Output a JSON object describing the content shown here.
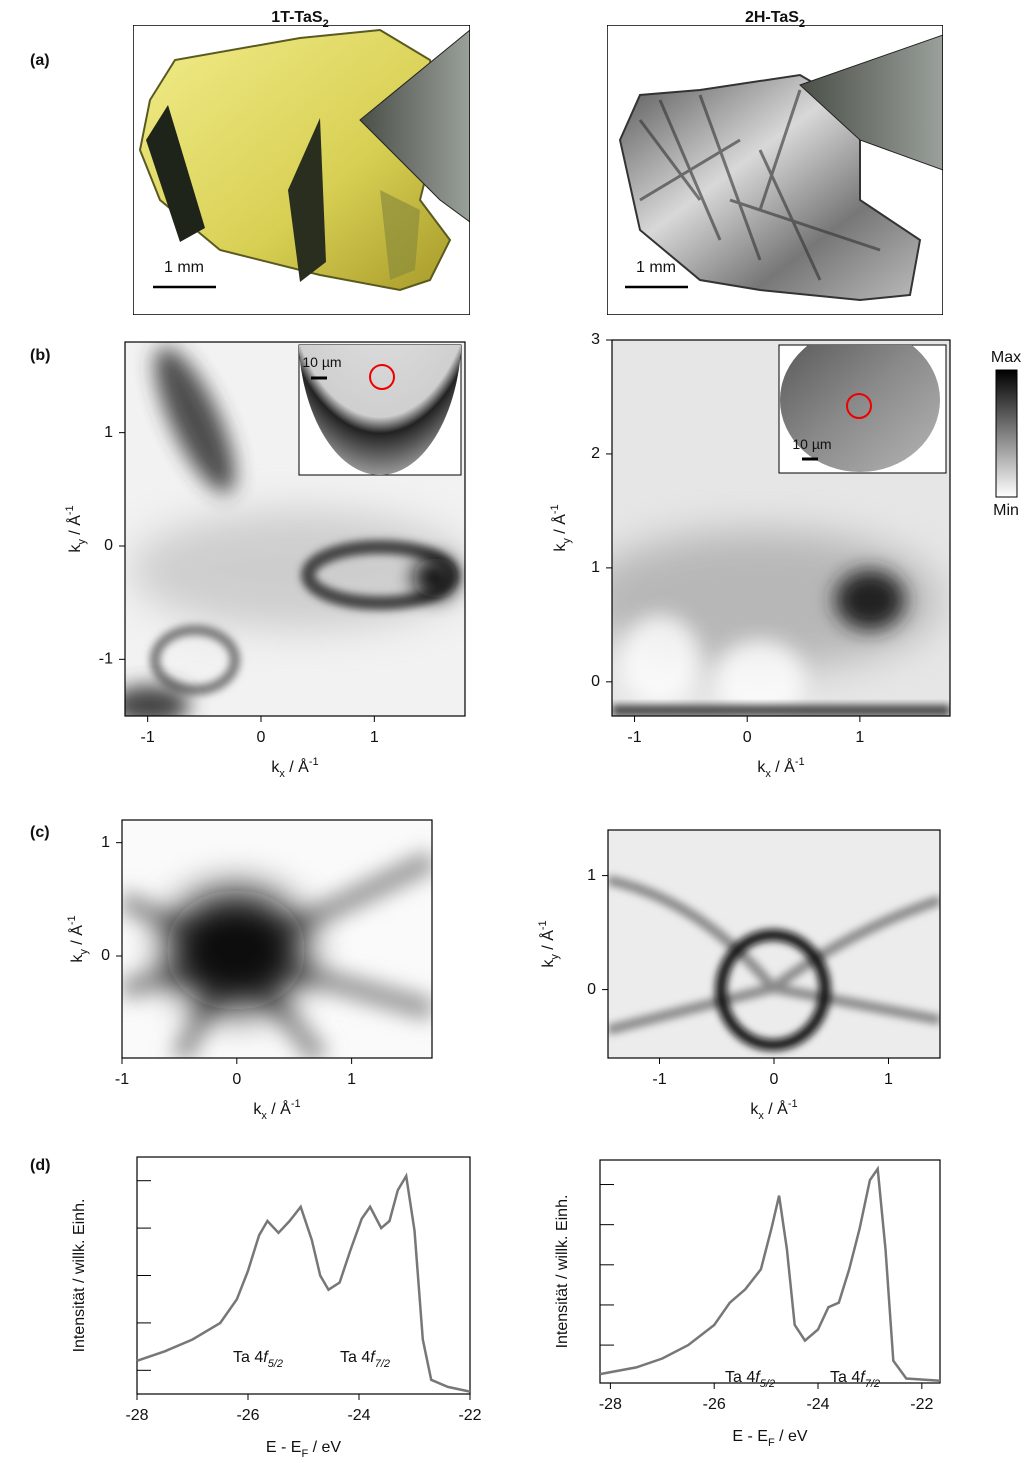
{
  "figure": {
    "columns": [
      [
        "1T-TaS",
        "2"
      ],
      [
        "2H-TaS",
        "2"
      ]
    ],
    "panel_labels": [
      "(a)",
      "(b)",
      "(c)",
      "(d)"
    ],
    "scale_bars": [
      "1 mm",
      "1 mm"
    ],
    "inset_scale_bars": [
      "10 µm",
      "10 µm"
    ],
    "colorbar": {
      "max": "Max",
      "min": "Min"
    }
  },
  "chart_data": [
    {
      "type": "heatmap",
      "x_label": [
        "k",
        "x",
        " / Å",
        "-1"
      ],
      "y_label": [
        "k",
        "y",
        " / Å",
        "-1"
      ],
      "xlim": [
        -1.2,
        1.8
      ],
      "ylim": [
        -1.5,
        1.8
      ],
      "xticks": [
        -1,
        0,
        1
      ],
      "yticks": [
        -1,
        0,
        1
      ]
    },
    {
      "type": "heatmap",
      "x_label": [
        "k",
        "x",
        " / Å",
        "-1"
      ],
      "y_label": [
        "k",
        "y",
        " / Å",
        "-1"
      ],
      "xlim": [
        -1.2,
        1.8
      ],
      "ylim": [
        -0.3,
        3
      ],
      "xticks": [
        -1,
        0,
        1
      ],
      "yticks": [
        0,
        1,
        2,
        3
      ]
    },
    {
      "type": "heatmap",
      "x_label": [
        "k",
        "x",
        " / Å",
        "-1"
      ],
      "y_label": [
        "k",
        "y",
        " / Å",
        "-1"
      ],
      "xlim": [
        -1,
        1.7
      ],
      "ylim": [
        -0.9,
        1.2
      ],
      "xticks": [
        -1,
        0,
        1
      ],
      "yticks": [
        0,
        1
      ]
    },
    {
      "type": "heatmap",
      "x_label": [
        "k",
        "x",
        " / Å",
        "-1"
      ],
      "y_label": [
        "k",
        "y",
        " / Å",
        "-1"
      ],
      "xlim": [
        -1.45,
        1.45
      ],
      "ylim": [
        -0.6,
        1.4
      ],
      "xticks": [
        -1,
        0,
        1
      ],
      "yticks": [
        0,
        1
      ]
    },
    {
      "type": "line",
      "x_label": [
        "E - E",
        "F",
        " / eV"
      ],
      "y_label": [
        "Intensität / willk. Einh."
      ],
      "xlim": [
        -28,
        -22
      ],
      "ylim": [
        0,
        1
      ],
      "xticks": [
        -28,
        -26,
        -24,
        -22
      ],
      "yticks": [
        0.1,
        0.3,
        0.5,
        0.7,
        0.9
      ],
      "color": "#777777",
      "x": [
        -28,
        -27.5,
        -27,
        -26.5,
        -26.2,
        -26,
        -25.8,
        -25.65,
        -25.45,
        -25.25,
        -25.05,
        -24.85,
        -24.7,
        -24.55,
        -24.35,
        -24.15,
        -23.95,
        -23.8,
        -23.6,
        -23.45,
        -23.3,
        -23.15,
        -23.0,
        -22.85,
        -22.7,
        -22.4,
        -22
      ],
      "values": [
        0.14,
        0.18,
        0.23,
        0.3,
        0.4,
        0.52,
        0.67,
        0.73,
        0.68,
        0.73,
        0.79,
        0.65,
        0.5,
        0.44,
        0.47,
        0.61,
        0.74,
        0.79,
        0.7,
        0.73,
        0.86,
        0.92,
        0.69,
        0.23,
        0.06,
        0.03,
        0.01
      ],
      "annotations": [
        [
          "Ta 4",
          "f",
          "5/2"
        ],
        [
          "Ta 4",
          "f",
          "7/2"
        ]
      ]
    },
    {
      "type": "line",
      "x_label": [
        "E - E",
        "F",
        " / eV"
      ],
      "y_label": [
        "Intensität / willk. Einh."
      ],
      "xlim": [
        -28.2,
        -21.65
      ],
      "ylim": [
        0,
        1
      ],
      "xticks": [
        -28,
        -26,
        -24,
        -22
      ],
      "yticks": [
        0.17,
        0.35,
        0.53,
        0.71,
        0.89
      ],
      "color": "#777777",
      "x": [
        -28.2,
        -27.5,
        -27,
        -26.5,
        -26,
        -25.7,
        -25.4,
        -25.1,
        -24.9,
        -24.75,
        -24.6,
        -24.45,
        -24.25,
        -24,
        -23.8,
        -23.6,
        -23.4,
        -23.2,
        -23.0,
        -22.85,
        -22.7,
        -22.55,
        -22.3,
        -21.65
      ],
      "values": [
        0.04,
        0.07,
        0.11,
        0.17,
        0.26,
        0.36,
        0.42,
        0.51,
        0.69,
        0.84,
        0.6,
        0.26,
        0.19,
        0.24,
        0.34,
        0.36,
        0.51,
        0.69,
        0.91,
        0.96,
        0.6,
        0.1,
        0.02,
        0.01
      ],
      "annotations": [
        [
          "Ta 4",
          "f",
          "5/2"
        ],
        [
          "Ta 4",
          "f",
          "7/2"
        ]
      ]
    }
  ]
}
